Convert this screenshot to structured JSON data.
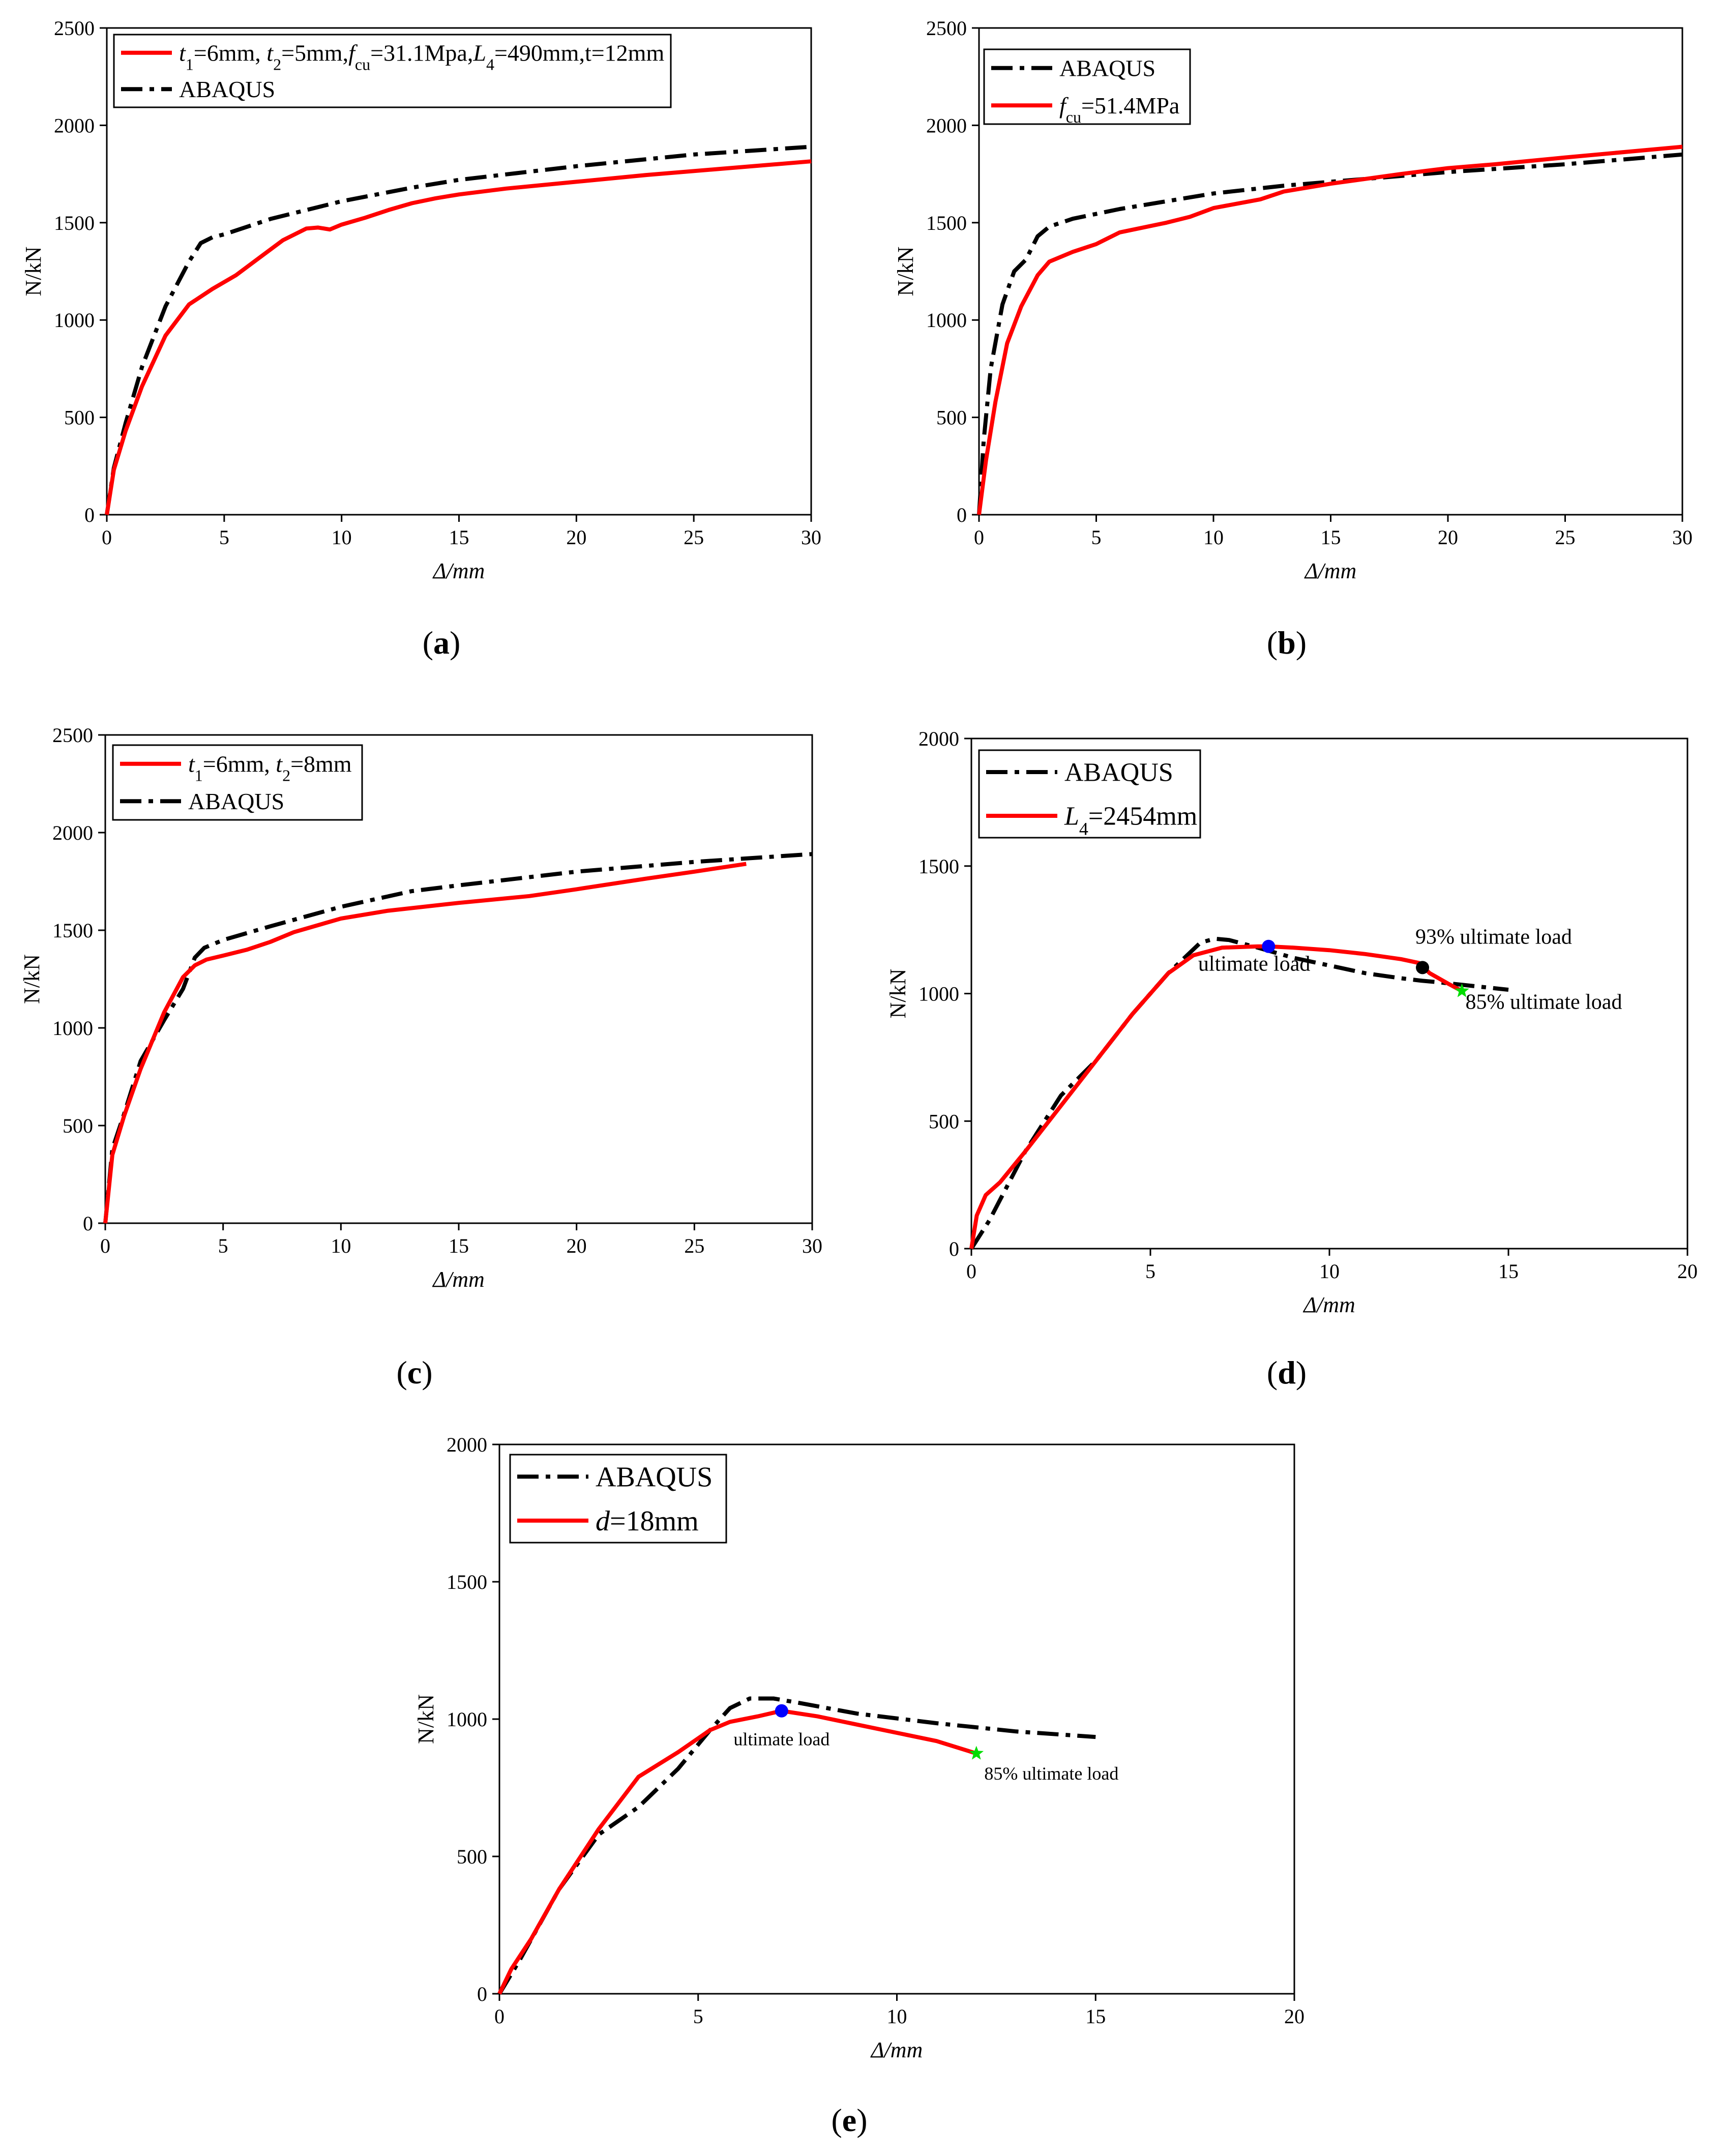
{
  "chart_data": [
    {
      "id": "a",
      "type": "line",
      "caption": "a",
      "xlabel": "Δ/mm",
      "ylabel": "N/kN",
      "xlim": [
        0,
        30
      ],
      "ylim": [
        0,
        2500
      ],
      "xticks": [
        0,
        5,
        10,
        15,
        20,
        25,
        30
      ],
      "yticks": [
        0,
        500,
        1000,
        1500,
        2000,
        2500
      ],
      "legend": [
        {
          "series": 0,
          "parts": [
            [
              "t",
              "i"
            ],
            [
              "1",
              "sub"
            ],
            [
              "=6mm, ",
              ""
            ],
            [
              "t",
              "i"
            ],
            [
              "2",
              "sub"
            ],
            [
              "=5mm,",
              ""
            ],
            [
              "f",
              "i"
            ],
            [
              "cu",
              "sub"
            ],
            [
              "=31.1Mpa,",
              ""
            ],
            [
              "L",
              "i"
            ],
            [
              "4",
              "sub"
            ],
            [
              "=490mm,t=12mm",
              ""
            ]
          ]
        },
        {
          "series": 1,
          "parts": [
            [
              "ABAQUS",
              ""
            ]
          ]
        }
      ],
      "series": [
        {
          "name": "t1=6mm, t2=5mm, fcu=31.1Mpa, L4=490mm, t=12mm",
          "color": "#ff0000",
          "style": "solid",
          "x": [
            0,
            0.3,
            0.8,
            1.5,
            2.5,
            3.5,
            4.5,
            5.5,
            6.5,
            7.5,
            8.5,
            9.0,
            9.5,
            10,
            11,
            12,
            13,
            14,
            15,
            17,
            20,
            23,
            26,
            30
          ],
          "y": [
            0,
            230,
            430,
            660,
            920,
            1080,
            1160,
            1230,
            1320,
            1410,
            1470,
            1475,
            1465,
            1490,
            1525,
            1565,
            1600,
            1625,
            1645,
            1675,
            1710,
            1745,
            1775,
            1815
          ]
        },
        {
          "name": "ABAQUS",
          "color": "#000000",
          "style": "dashdot",
          "x": [
            0,
            0.3,
            0.8,
            1.5,
            2.5,
            3.5,
            4,
            4.5,
            5,
            7,
            10,
            13,
            15,
            20,
            25,
            30
          ],
          "y": [
            0,
            240,
            470,
            760,
            1070,
            1300,
            1395,
            1425,
            1440,
            1520,
            1610,
            1680,
            1720,
            1790,
            1850,
            1890
          ]
        }
      ]
    },
    {
      "id": "b",
      "type": "line",
      "caption": "b",
      "xlabel": "Δ/mm",
      "ylabel": "N/kN",
      "xlim": [
        0,
        30
      ],
      "ylim": [
        0,
        2500
      ],
      "xticks": [
        0,
        5,
        10,
        15,
        20,
        25,
        30
      ],
      "yticks": [
        0,
        500,
        1000,
        1500,
        2000,
        2500
      ],
      "legend": [
        {
          "series": 1,
          "parts": [
            [
              "ABAQUS",
              ""
            ]
          ]
        },
        {
          "series": 0,
          "parts": [
            [
              "f",
              "i"
            ],
            [
              "cu",
              "sub"
            ],
            [
              "=51.4MPa",
              ""
            ]
          ]
        }
      ],
      "series": [
        {
          "name": "fcu=51.4MPa",
          "color": "#ff0000",
          "style": "solid",
          "x": [
            0,
            0.3,
            0.7,
            1.2,
            1.8,
            2.5,
            3,
            4,
            5,
            6,
            8,
            9,
            10,
            12,
            13,
            15,
            18,
            20,
            22,
            25,
            30
          ],
          "y": [
            0,
            280,
            580,
            880,
            1070,
            1230,
            1300,
            1350,
            1390,
            1450,
            1500,
            1530,
            1575,
            1620,
            1660,
            1700,
            1750,
            1780,
            1800,
            1835,
            1890
          ]
        },
        {
          "name": "ABAQUS",
          "color": "#000000",
          "style": "dashdot",
          "x": [
            0,
            0.2,
            0.5,
            1,
            1.5,
            2,
            2.5,
            3,
            4,
            6,
            8,
            10,
            13,
            15,
            20,
            25,
            30
          ],
          "y": [
            0,
            380,
            750,
            1080,
            1250,
            1310,
            1430,
            1480,
            1520,
            1570,
            1610,
            1650,
            1690,
            1710,
            1760,
            1800,
            1850
          ]
        }
      ]
    },
    {
      "id": "c",
      "type": "line",
      "caption": "c",
      "xlabel": "Δ/mm",
      "ylabel": "N/kN",
      "xlim": [
        0,
        30
      ],
      "ylim": [
        0,
        2500
      ],
      "xticks": [
        0,
        5,
        10,
        15,
        20,
        25,
        30
      ],
      "yticks": [
        0,
        500,
        1000,
        1500,
        2000,
        2500
      ],
      "legend": [
        {
          "series": 0,
          "parts": [
            [
              "t",
              "i"
            ],
            [
              "1",
              "sub"
            ],
            [
              "=6mm, ",
              ""
            ],
            [
              "t",
              "i"
            ],
            [
              "2",
              "sub"
            ],
            [
              "=8mm",
              ""
            ]
          ]
        },
        {
          "series": 1,
          "parts": [
            [
              "ABAQUS",
              ""
            ]
          ]
        }
      ],
      "series": [
        {
          "name": "t1=6mm, t2=8mm",
          "color": "#ff0000",
          "style": "solid",
          "x": [
            0,
            0.3,
            0.8,
            1.5,
            2.5,
            3.3,
            3.8,
            4.3,
            5,
            6,
            7,
            8,
            10,
            12,
            15,
            18,
            20,
            23,
            25,
            27.2
          ],
          "y": [
            0,
            350,
            550,
            790,
            1080,
            1260,
            1320,
            1350,
            1370,
            1400,
            1440,
            1490,
            1560,
            1600,
            1640,
            1675,
            1710,
            1765,
            1800,
            1840
          ]
        },
        {
          "name": "ABAQUS",
          "color": "#000000",
          "style": "dashdot",
          "x": [
            0,
            0.3,
            0.8,
            1.5,
            2.5,
            3.3,
            3.8,
            4.2,
            5,
            7,
            10,
            13,
            15,
            20,
            25,
            30
          ],
          "y": [
            0,
            380,
            560,
            830,
            1040,
            1200,
            1360,
            1410,
            1450,
            1520,
            1620,
            1700,
            1730,
            1800,
            1850,
            1890
          ]
        }
      ]
    },
    {
      "id": "d",
      "type": "line",
      "caption": "d",
      "xlabel": "Δ/mm",
      "ylabel": "N/kN",
      "xlim": [
        0,
        20
      ],
      "ylim": [
        0,
        2000
      ],
      "xticks": [
        0,
        5,
        10,
        15,
        20
      ],
      "yticks": [
        0,
        500,
        1000,
        1500,
        2000
      ],
      "legend": [
        {
          "series": 1,
          "parts": [
            [
              "ABAQUS",
              ""
            ]
          ]
        },
        {
          "series": 0,
          "parts": [
            [
              "L",
              "i"
            ],
            [
              "4",
              "sub"
            ],
            [
              "=2454mm",
              ""
            ]
          ]
        }
      ],
      "series": [
        {
          "name": "L4=2454mm",
          "color": "#ff0000",
          "style": "solid",
          "x": [
            0,
            0.15,
            0.4,
            0.8,
            1.5,
            2.5,
            3.5,
            4.5,
            5.5,
            6.2,
            7,
            8,
            8.3,
            9,
            10,
            11,
            12,
            12.5,
            12.8,
            13.3,
            13.7
          ],
          "y": [
            0,
            130,
            210,
            260,
            380,
            560,
            740,
            920,
            1080,
            1150,
            1180,
            1185,
            1185,
            1180,
            1170,
            1155,
            1135,
            1120,
            1080,
            1040,
            1010
          ]
        },
        {
          "name": "ABAQUS",
          "color": "#000000",
          "style": "dashdot",
          "x": [
            0,
            0.5,
            1.5,
            2.5,
            3.5,
            4.5,
            5.5,
            6.4,
            6.8,
            7.2,
            8,
            9,
            10,
            11,
            12,
            12.6,
            13,
            14,
            15
          ],
          "y": [
            0,
            110,
            380,
            600,
            740,
            920,
            1080,
            1200,
            1215,
            1210,
            1180,
            1140,
            1110,
            1080,
            1060,
            1050,
            1045,
            1030,
            1015
          ]
        }
      ],
      "annotations": [
        {
          "text": "ultimate load",
          "x": 8.3,
          "y": 1185,
          "marker": "circle",
          "color": "#0000ff",
          "tx": 7.9,
          "ty": 1090,
          "size": 42
        },
        {
          "text": "93% ultimate load",
          "x": 12.6,
          "y": 1102,
          "marker": "circle",
          "color": "#000000",
          "tx": 12.4,
          "ty": 1195,
          "size": 42
        },
        {
          "text": "85% ultimate load",
          "x": 13.7,
          "y": 1010,
          "marker": "star",
          "color": "#00dd00",
          "tx": 13.8,
          "ty": 940,
          "size": 42
        }
      ]
    },
    {
      "id": "e",
      "type": "line",
      "caption": "e",
      "xlabel": "Δ/mm",
      "ylabel": "N/kN",
      "xlim": [
        0,
        20
      ],
      "ylim": [
        0,
        2000
      ],
      "xticks": [
        0,
        5,
        10,
        15,
        20
      ],
      "yticks": [
        0,
        500,
        1000,
        1500,
        2000
      ],
      "legend": [
        {
          "series": 1,
          "parts": [
            [
              "ABAQUS",
              ""
            ]
          ]
        },
        {
          "series": 0,
          "parts": [
            [
              "d",
              "i"
            ],
            [
              "=18mm",
              ""
            ]
          ]
        }
      ],
      "series": [
        {
          "name": "d=18mm",
          "color": "#ff0000",
          "style": "solid",
          "x": [
            0,
            0.3,
            0.8,
            1.5,
            2.5,
            3.5,
            4.5,
            5.1,
            5.3,
            5.8,
            6.5,
            7.1,
            8,
            9,
            10,
            11,
            12
          ],
          "y": [
            0,
            90,
            200,
            380,
            600,
            790,
            880,
            940,
            960,
            990,
            1010,
            1030,
            1010,
            980,
            950,
            920,
            875
          ]
        },
        {
          "name": "ABAQUS",
          "color": "#000000",
          "style": "dashdot",
          "x": [
            0,
            0.5,
            1.5,
            2.5,
            3.5,
            4.5,
            5.3,
            5.8,
            6.3,
            6.9,
            7.5,
            9,
            11,
            13,
            15
          ],
          "y": [
            0,
            120,
            380,
            580,
            680,
            820,
            960,
            1040,
            1075,
            1075,
            1060,
            1020,
            985,
            955,
            935
          ]
        }
      ],
      "annotations": [
        {
          "text": "ultimate load",
          "x": 7.1,
          "y": 1030,
          "marker": "circle",
          "color": "#0000ff",
          "tx": 7.1,
          "ty": 905,
          "size": 36
        },
        {
          "text": "85% ultimate load",
          "x": 12,
          "y": 875,
          "marker": "star",
          "color": "#00dd00",
          "tx": 12.2,
          "ty": 780,
          "size": 36
        }
      ]
    }
  ]
}
